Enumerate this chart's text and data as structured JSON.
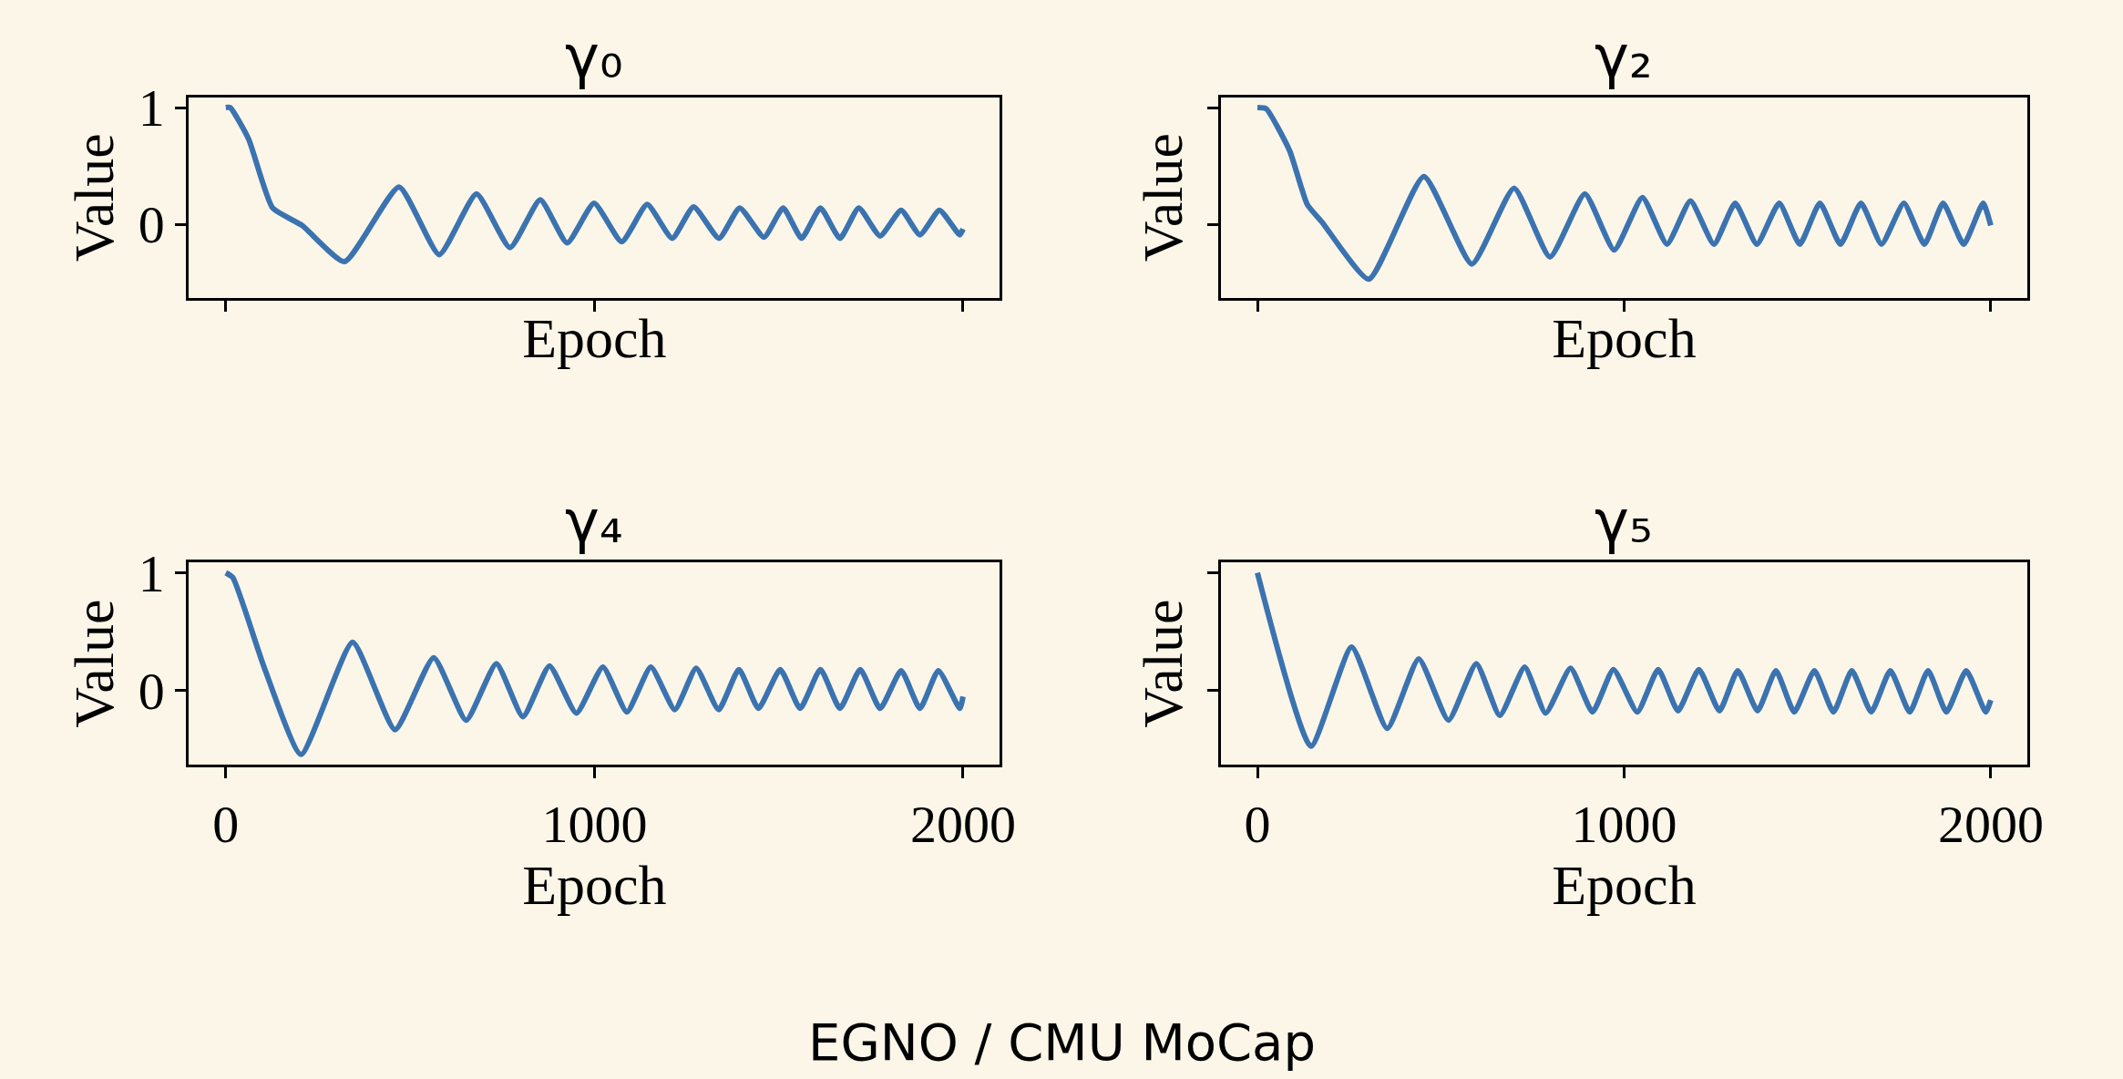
{
  "chart_data": [
    {
      "type": "line",
      "title": "γ₀",
      "xlabel": "Epoch",
      "ylabel": "Value",
      "xlim": [
        -100,
        2100
      ],
      "ylim": [
        -0.63,
        1.09
      ],
      "xticks": [
        0,
        1000,
        2000
      ],
      "yticks": [
        0,
        1
      ],
      "tick_labels": "y",
      "x": [
        0,
        12,
        62,
        127,
        207,
        322,
        470,
        579,
        680,
        771,
        853,
        926,
        999,
        1074,
        1143,
        1211,
        1269,
        1338,
        1394,
        1460,
        1512,
        1562,
        1613,
        1666,
        1717,
        1775,
        1832,
        1883,
        1936,
        1991,
        2000
      ],
      "series": [
        {
          "color": "#3b73b0",
          "values": [
            1.0,
            1.0,
            0.73,
            0.14,
            -0.01,
            -0.32,
            0.32,
            -0.26,
            0.26,
            -0.2,
            0.21,
            -0.16,
            0.18,
            -0.15,
            0.17,
            -0.12,
            0.15,
            -0.12,
            0.14,
            -0.11,
            0.14,
            -0.12,
            0.14,
            -0.12,
            0.14,
            -0.1,
            0.12,
            -0.09,
            0.12,
            -0.09,
            -0.04
          ]
        }
      ]
    },
    {
      "type": "line",
      "title": "γ₂",
      "xlabel": "Epoch",
      "ylabel": "Value",
      "xlim": [
        -100,
        2100
      ],
      "ylim": [
        -0.63,
        1.09
      ],
      "xticks": [
        0,
        1000,
        2000
      ],
      "yticks": [
        0,
        1
      ],
      "tick_labels": false,
      "x": [
        0,
        24,
        88,
        136,
        176,
        304,
        454,
        585,
        700,
        798,
        893,
        973,
        1050,
        1117,
        1181,
        1245,
        1303,
        1362,
        1423,
        1479,
        1534,
        1590,
        1646,
        1702,
        1763,
        1819,
        1870,
        1926,
        1979,
        2000
      ],
      "series": [
        {
          "color": "#3b73b0",
          "values": [
            1.0,
            0.99,
            0.63,
            0.17,
            0.02,
            -0.47,
            0.41,
            -0.34,
            0.31,
            -0.28,
            0.26,
            -0.22,
            0.23,
            -0.17,
            0.2,
            -0.17,
            0.18,
            -0.17,
            0.18,
            -0.17,
            0.18,
            -0.17,
            0.18,
            -0.17,
            0.18,
            -0.17,
            0.18,
            -0.17,
            0.18,
            -0.01
          ]
        }
      ]
    },
    {
      "type": "line",
      "title": "γ₄",
      "xlabel": "Epoch",
      "ylabel": "Value",
      "xlim": [
        -100,
        2100
      ],
      "ylim": [
        -0.63,
        1.09
      ],
      "xticks": [
        0,
        1000,
        2000
      ],
      "yticks": [
        0,
        1
      ],
      "x": [
        0,
        19,
        105,
        204,
        344,
        459,
        564,
        652,
        734,
        806,
        878,
        951,
        1023,
        1088,
        1153,
        1218,
        1276,
        1337,
        1392,
        1445,
        1504,
        1558,
        1613,
        1666,
        1721,
        1775,
        1832,
        1883,
        1933,
        1991,
        2000
      ],
      "series": [
        {
          "color": "#3b73b0",
          "values": [
            1.0,
            0.96,
            0.19,
            -0.54,
            0.41,
            -0.33,
            0.28,
            -0.25,
            0.23,
            -0.22,
            0.21,
            -0.19,
            0.2,
            -0.18,
            0.2,
            -0.16,
            0.19,
            -0.16,
            0.18,
            -0.15,
            0.18,
            -0.15,
            0.18,
            -0.15,
            0.18,
            -0.15,
            0.17,
            -0.15,
            0.17,
            -0.15,
            -0.05
          ]
        }
      ]
    },
    {
      "type": "line",
      "title": "γ₅",
      "xlabel": "Epoch",
      "ylabel": "Value",
      "xlim": [
        -100,
        2100
      ],
      "ylim": [
        -0.63,
        1.09
      ],
      "xticks": [
        0,
        1000,
        2000
      ],
      "yticks": [
        0,
        1
      ],
      "tick_labels": "x",
      "annotations": [
        "EGNO / CMU MoCap"
      ],
      "x": [
        0,
        146,
        257,
        354,
        440,
        521,
        597,
        661,
        729,
        786,
        854,
        914,
        971,
        1036,
        1093,
        1147,
        1204,
        1260,
        1310,
        1364,
        1414,
        1464,
        1519,
        1571,
        1621,
        1674,
        1726,
        1779,
        1829,
        1879,
        1933,
        1986,
        2000
      ],
      "series": [
        {
          "color": "#3b73b0",
          "values": [
            1.0,
            -0.47,
            0.37,
            -0.32,
            0.27,
            -0.25,
            0.23,
            -0.21,
            0.2,
            -0.19,
            0.19,
            -0.18,
            0.18,
            -0.18,
            0.18,
            -0.17,
            0.18,
            -0.17,
            0.17,
            -0.17,
            0.17,
            -0.18,
            0.17,
            -0.18,
            0.17,
            -0.18,
            0.17,
            -0.18,
            0.17,
            -0.18,
            0.17,
            -0.18,
            -0.08
          ]
        }
      ]
    }
  ]
}
